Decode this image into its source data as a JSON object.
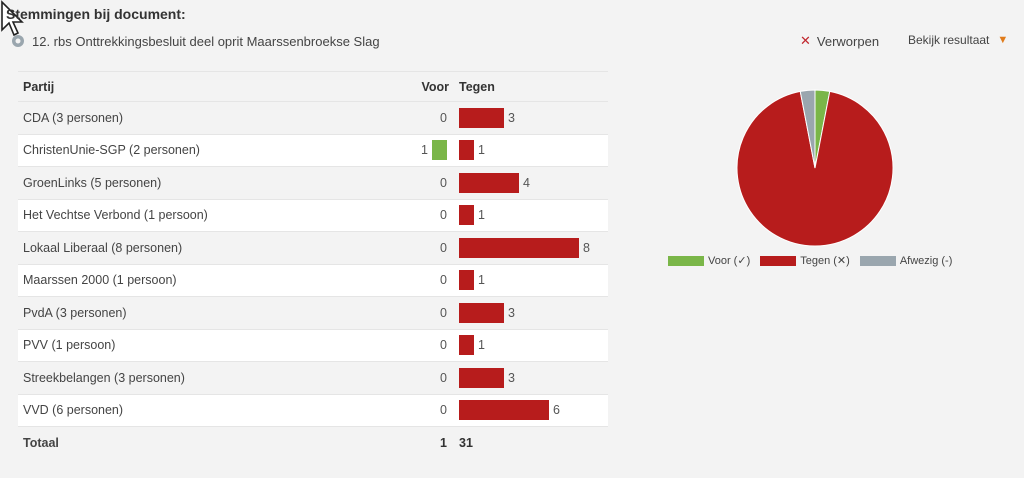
{
  "header": {
    "title": "Stemmingen bij document:",
    "document": "12. rbs Onttrekkingsbesluit deel oprit Maarssenbroekse Slag"
  },
  "status": {
    "icon": "close-icon",
    "label": "Verworpen",
    "color": "#c0262d"
  },
  "bekijk": {
    "label": "Bekijk resultaat",
    "icon": "chevron-down-icon"
  },
  "table": {
    "headers": {
      "party": "Partij",
      "voor": "Voor",
      "tegen": "Tegen"
    },
    "rows": [
      {
        "party": "CDA (3 personen)",
        "voor": 0,
        "tegen": 3
      },
      {
        "party": "ChristenUnie-SGP (2 personen)",
        "voor": 1,
        "tegen": 1
      },
      {
        "party": "GroenLinks (5 personen)",
        "voor": 0,
        "tegen": 4
      },
      {
        "party": "Het Vechtse Verbond (1 persoon)",
        "voor": 0,
        "tegen": 1
      },
      {
        "party": "Lokaal Liberaal (8 personen)",
        "voor": 0,
        "tegen": 8
      },
      {
        "party": "Maarssen 2000 (1 persoon)",
        "voor": 0,
        "tegen": 1
      },
      {
        "party": "PvdA (3 personen)",
        "voor": 0,
        "tegen": 3
      },
      {
        "party": "PVV (1 persoon)",
        "voor": 0,
        "tegen": 1
      },
      {
        "party": "Streekbelangen (3 personen)",
        "voor": 0,
        "tegen": 3
      },
      {
        "party": "VVD (6 personen)",
        "voor": 0,
        "tegen": 6
      }
    ],
    "total": {
      "label": "Totaal",
      "voor": "1",
      "tegen": "31"
    }
  },
  "colors": {
    "voor": "#7ab648",
    "tegen": "#b71c1c",
    "afwezig": "#9aa6ae"
  },
  "pie": {
    "slices": [
      {
        "name": "Voor",
        "value": 1
      },
      {
        "name": "Tegen",
        "value": 31
      },
      {
        "name": "Afwezig",
        "value": 1
      }
    ]
  },
  "legend": [
    {
      "label": "Voor (✓)",
      "color": "#7ab648"
    },
    {
      "label": "Tegen (✕)",
      "color": "#b71c1c"
    },
    {
      "label": "Afwezig (-)",
      "color": "#9aa6ae"
    }
  ]
}
